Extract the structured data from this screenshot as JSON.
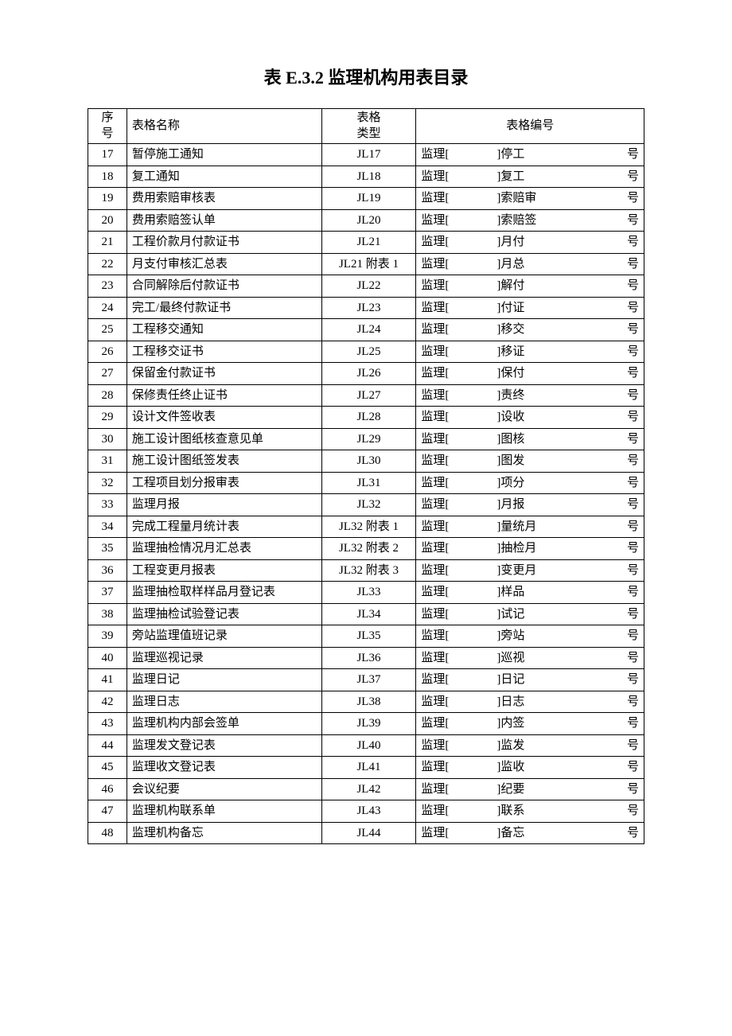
{
  "title": "表 E.3.2 监理机构用表目录",
  "headers": {
    "seq": "序号",
    "name": "表格名称",
    "type": "表格类型",
    "code": "表格编号"
  },
  "code_prefix": "监理[",
  "code_bracket": "]",
  "code_suffix": "号",
  "rows": [
    {
      "seq": "17",
      "name": "暂停施工通知",
      "type": "JL17",
      "mid": "停工",
      "suf": "号"
    },
    {
      "seq": "18",
      "name": "复工通知",
      "type": "JL18",
      "mid": "复工",
      "suf": "号"
    },
    {
      "seq": "19",
      "name": "费用索赔审核表",
      "type": "JL19",
      "mid": "索赔审",
      "suf": "号"
    },
    {
      "seq": "20",
      "name": "费用索赔签认单",
      "type": "JL20",
      "mid": "索赔签",
      "suf": "号"
    },
    {
      "seq": "21",
      "name": "工程价款月付款证书",
      "type": "JL21",
      "mid": "月付",
      "suf": "号"
    },
    {
      "seq": "22",
      "name": "月支付审核汇总表",
      "type": "JL21 附表 1",
      "mid": "月总",
      "suf": "号"
    },
    {
      "seq": "23",
      "name": "合同解除后付款证书",
      "type": "JL22",
      "mid": "解付",
      "suf": "号"
    },
    {
      "seq": "24",
      "name": "完工/最终付款证书",
      "type": "JL23",
      "mid": "付证",
      "suf": "号"
    },
    {
      "seq": "25",
      "name": "工程移交通知",
      "type": "JL24",
      "mid": "移交",
      "suf": "号"
    },
    {
      "seq": "26",
      "name": "工程移交证书",
      "type": "JL25",
      "mid": "移证",
      "suf": "号"
    },
    {
      "seq": "27",
      "name": "保留金付款证书",
      "type": "JL26",
      "mid": "保付",
      "suf": "号"
    },
    {
      "seq": "28",
      "name": "保修责任终止证书",
      "type": "JL27",
      "mid": "责终",
      "suf": "号"
    },
    {
      "seq": "29",
      "name": "设计文件签收表",
      "type": "JL28",
      "mid": "设收",
      "suf": "号"
    },
    {
      "seq": "30",
      "name": "施工设计图纸核查意见单",
      "type": "JL29",
      "mid": "图核",
      "suf": "号"
    },
    {
      "seq": "31",
      "name": "施工设计图纸签发表",
      "type": "JL30",
      "mid": "图发",
      "suf": "号"
    },
    {
      "seq": "32",
      "name": "工程项目划分报审表",
      "type": "JL31",
      "mid": "项分",
      "suf": "号"
    },
    {
      "seq": "33",
      "name": "监理月报",
      "type": "JL32",
      "mid": "月报",
      "suf": "号"
    },
    {
      "seq": "34",
      "name": "完成工程量月统计表",
      "type": "JL32 附表 1",
      "mid": "量统月",
      "suf": "号"
    },
    {
      "seq": "35",
      "name": "监理抽检情况月汇总表",
      "type": "JL32 附表 2",
      "mid": "抽检月",
      "suf": "号"
    },
    {
      "seq": "36",
      "name": "工程变更月报表",
      "type": "JL32 附表 3",
      "mid": "变更月",
      "suf": "号"
    },
    {
      "seq": "37",
      "name": "监理抽检取样样品月登记表",
      "type": "JL33",
      "mid": "样品",
      "suf": "号"
    },
    {
      "seq": "38",
      "name": "监理抽检试验登记表",
      "type": "JL34",
      "mid": "试记",
      "suf": "号"
    },
    {
      "seq": "39",
      "name": "旁站监理值班记录",
      "type": "JL35",
      "mid": "旁站",
      "suf": "号"
    },
    {
      "seq": "40",
      "name": "监理巡视记录",
      "type": "JL36",
      "mid": "巡视",
      "suf": "号"
    },
    {
      "seq": "41",
      "name": "监理日记",
      "type": "JL37",
      "mid": "日记",
      "suf": "号"
    },
    {
      "seq": "42",
      "name": "监理日志",
      "type": "JL38",
      "mid": "日志",
      "suf": "号"
    },
    {
      "seq": "43",
      "name": "监理机构内部会签单",
      "type": "JL39",
      "mid": "内签",
      "suf": "号"
    },
    {
      "seq": "44",
      "name": "监理发文登记表",
      "type": "JL40",
      "mid": "监发",
      "suf": "号"
    },
    {
      "seq": "45",
      "name": "监理收文登记表",
      "type": "JL41",
      "mid": "监收",
      "suf": "号"
    },
    {
      "seq": "46",
      "name": "会议纪要",
      "type": "JL42",
      "mid": "纪要",
      "suf": "号"
    },
    {
      "seq": "47",
      "name": "监理机构联系单",
      "type": "JL43",
      "mid": "联系",
      "suf": "号"
    },
    {
      "seq": "48",
      "name": "监理机构备忘",
      "type": "JL44",
      "mid": "备忘",
      "suf": "号"
    }
  ]
}
